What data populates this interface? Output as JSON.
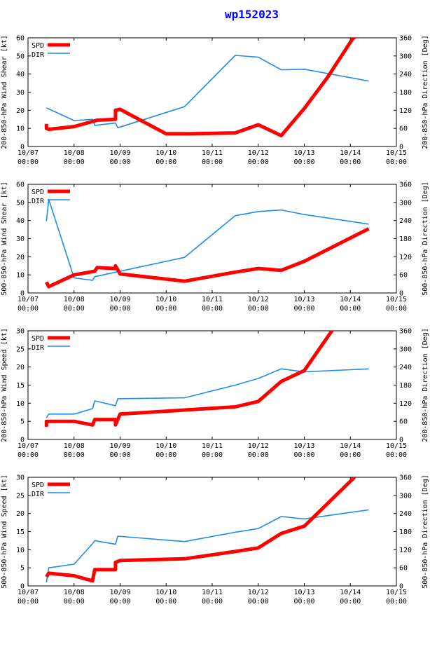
{
  "title": "wp152023",
  "colors": {
    "spd": "#ff0000",
    "dir": "#1f8ce8",
    "title": "#0000ff"
  },
  "x_tick_labels": [
    [
      "10/07",
      "00:00"
    ],
    [
      "10/08",
      "00:00"
    ],
    [
      "10/09",
      "00:00"
    ],
    [
      "10/10",
      "00:00"
    ],
    [
      "10/11",
      "00:00"
    ],
    [
      "10/12",
      "00:00"
    ],
    [
      "10/13",
      "00:00"
    ],
    [
      "10/14",
      "00:00"
    ],
    [
      "10/15",
      "00:00"
    ]
  ],
  "legend": {
    "spd": "SPD",
    "dir": "DIR"
  },
  "chart_data": [
    {
      "type": "line",
      "ylabel": "200-850-hPa Wind Shear [kt]",
      "y2label": "200-850-hPa Direction [Deg]",
      "xlim": [
        0,
        8
      ],
      "ylim": [
        0,
        60
      ],
      "y2lim": [
        0,
        360
      ],
      "yticks": [
        0,
        10,
        20,
        30,
        40,
        50,
        60
      ],
      "y2ticks": [
        0,
        60,
        120,
        180,
        240,
        300,
        360
      ],
      "series": [
        {
          "name": "SPD",
          "axis": "left",
          "x": [
            0.4,
            0.4,
            0.45,
            1.0,
            1.5,
            1.9,
            1.9,
            2.0,
            3.0,
            3.5,
            4.5,
            5.0,
            5.5,
            6.0,
            6.5,
            7.05,
            7.6
          ],
          "y": [
            12.5,
            10,
            9.5,
            11,
            14.5,
            15,
            20,
            20.5,
            7,
            7,
            7.5,
            12,
            6,
            21,
            38,
            59.5,
            69
          ]
        },
        {
          "name": "DIR",
          "axis": "right",
          "x": [
            0.4,
            1.0,
            1.4,
            1.45,
            1.9,
            1.95,
            3.4,
            4.5,
            5.0,
            5.5,
            6.0,
            7.4
          ],
          "y": [
            128,
            86,
            90,
            70,
            78,
            62,
            132,
            302,
            296,
            254,
            256,
            217
          ]
        }
      ]
    },
    {
      "type": "line",
      "ylabel": "500-850-hPa Wind Shear [kt]",
      "y2label": "500-850-hPa Direction [Deg]",
      "xlim": [
        0,
        8
      ],
      "ylim": [
        0,
        60
      ],
      "y2lim": [
        0,
        360
      ],
      "yticks": [
        0,
        10,
        20,
        30,
        40,
        50,
        60
      ],
      "y2ticks": [
        0,
        60,
        120,
        180,
        240,
        300,
        360
      ],
      "series": [
        {
          "name": "SPD",
          "axis": "left",
          "x": [
            0.4,
            0.45,
            1.0,
            1.45,
            1.5,
            1.9,
            1.9,
            2.0,
            3.4,
            4.5,
            5.0,
            5.5,
            6.0,
            7.4
          ],
          "y": [
            6,
            3.5,
            10,
            12,
            14,
            13.5,
            15,
            10.5,
            6.5,
            11.5,
            13.5,
            12.5,
            17.5,
            35.5
          ]
        },
        {
          "name": "DIR",
          "axis": "right",
          "x": [
            0.4,
            0.45,
            1.0,
            1.4,
            1.45,
            3.4,
            4.5,
            5.0,
            5.5,
            6.0,
            7.4
          ],
          "y": [
            238,
            310,
            50,
            42,
            54,
            118,
            256,
            270,
            275,
            260,
            228
          ]
        }
      ]
    },
    {
      "type": "line",
      "ylabel": "200-850-hPa Wind Speed [kt]",
      "y2label": "200-850-hPa Direction [Deg]",
      "xlim": [
        0,
        8
      ],
      "ylim": [
        0,
        30
      ],
      "y2lim": [
        0,
        360
      ],
      "yticks": [
        0,
        5,
        10,
        15,
        20,
        25,
        30
      ],
      "y2ticks": [
        0,
        60,
        120,
        180,
        240,
        300,
        360
      ],
      "series": [
        {
          "name": "SPD",
          "axis": "left",
          "x": [
            0.4,
            0.4,
            0.45,
            1.0,
            1.4,
            1.45,
            1.9,
            1.9,
            2.0,
            4.5,
            5.0,
            5.5,
            6.0,
            6.6,
            7.1
          ],
          "y": [
            3.5,
            5,
            5,
            5,
            4,
            5.5,
            5.5,
            4,
            7,
            9,
            10.5,
            16,
            19,
            30,
            40
          ]
        },
        {
          "name": "DIR",
          "axis": "right",
          "x": [
            0.4,
            0.45,
            1.0,
            1.4,
            1.45,
            1.9,
            1.95,
            3.4,
            4.5,
            5.0,
            5.5,
            6.0,
            7.4
          ],
          "y": [
            72,
            84,
            84,
            102,
            128,
            112,
            135,
            138,
            180,
            202,
            234,
            224,
            234
          ]
        }
      ]
    },
    {
      "type": "line",
      "ylabel": "500-850-hPa Wind Speed [kt]",
      "y2label": "500-850-hPa Direction [Deg]",
      "xlim": [
        0,
        8
      ],
      "ylim": [
        0,
        30
      ],
      "y2lim": [
        0,
        360
      ],
      "yticks": [
        0,
        5,
        10,
        15,
        20,
        25,
        30
      ],
      "y2ticks": [
        0,
        60,
        120,
        180,
        240,
        300,
        360
      ],
      "series": [
        {
          "name": "SPD",
          "axis": "left",
          "x": [
            0.4,
            0.45,
            1.0,
            1.4,
            1.45,
            1.9,
            1.9,
            2.0,
            3.4,
            4.5,
            5.0,
            5.5,
            6.0,
            7.05,
            7.6
          ],
          "y": [
            2.5,
            3.5,
            2.8,
            1.4,
            4.5,
            4.5,
            6.5,
            7,
            7.5,
            9.5,
            10.5,
            14.5,
            16.5,
            29.5,
            37
          ]
        },
        {
          "name": "DIR",
          "axis": "right",
          "x": [
            0.4,
            0.45,
            1.0,
            1.4,
            1.45,
            1.9,
            1.95,
            3.4,
            4.5,
            5.0,
            5.5,
            6.0,
            7.4
          ],
          "y": [
            12,
            60,
            72,
            140,
            150,
            138,
            165,
            147,
            178,
            190,
            230,
            222,
            252
          ]
        }
      ]
    }
  ]
}
